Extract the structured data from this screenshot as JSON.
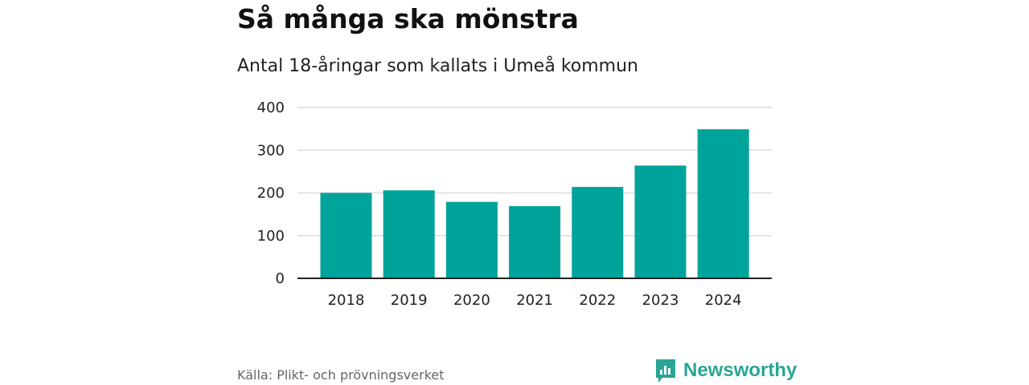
{
  "header": {
    "title": "Så många ska mönstra",
    "subtitle": "Antal 18-åringar som kallats i Umeå kommun"
  },
  "footer": {
    "source": "Källa: Plikt- och prövningsverket",
    "brand": "Newsworthy"
  },
  "colors": {
    "bar": "#00a39a",
    "grid": "#dddddd",
    "axis": "#222222",
    "brand": "#2aa596"
  },
  "chart_data": {
    "type": "bar",
    "title": "Så många ska mönstra",
    "subtitle": "Antal 18-åringar som kallats i Umeå kommun",
    "categories": [
      "2018",
      "2019",
      "2020",
      "2021",
      "2022",
      "2023",
      "2024"
    ],
    "values": [
      200,
      206,
      179,
      169,
      214,
      264,
      349
    ],
    "xlabel": "",
    "ylabel": "",
    "ylim": [
      0,
      400
    ],
    "yticks": [
      0,
      100,
      200,
      300,
      400
    ],
    "grid": true,
    "legend": "none"
  }
}
